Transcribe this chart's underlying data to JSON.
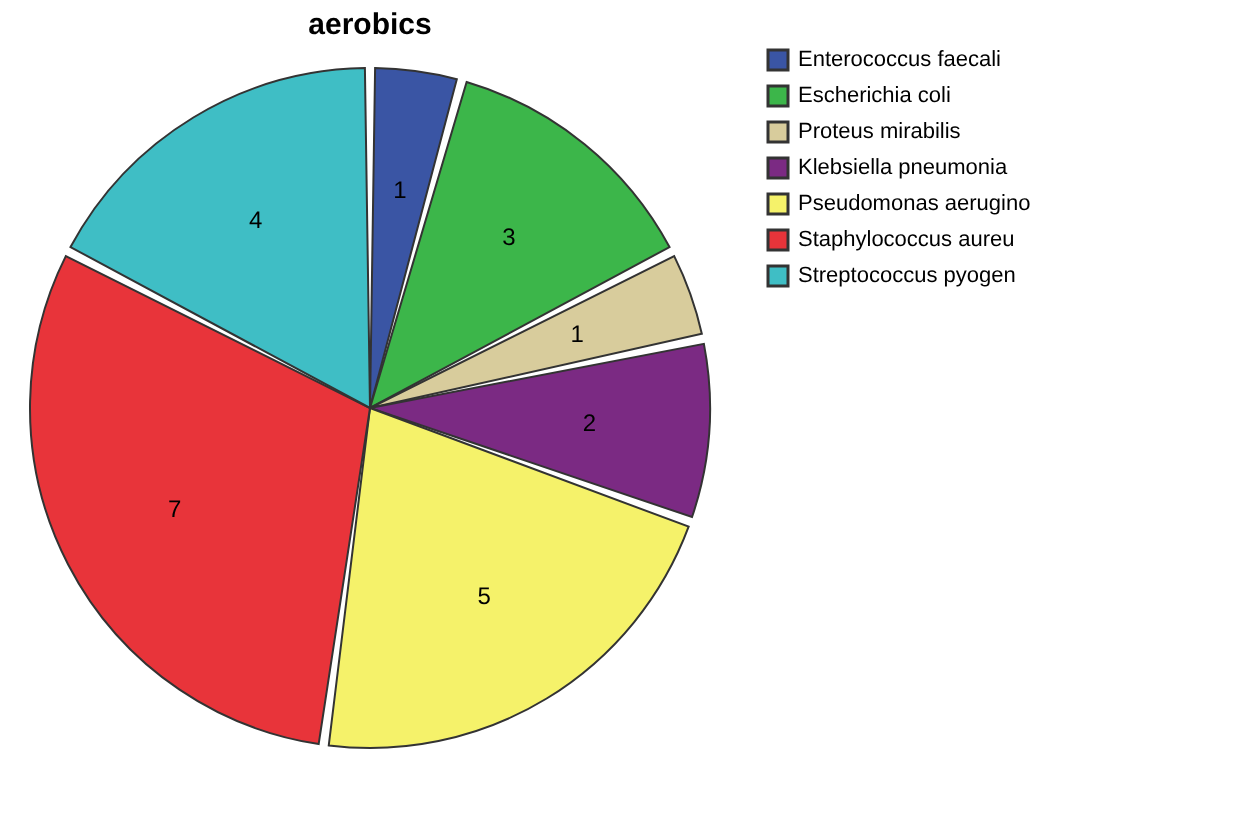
{
  "chart_data": {
    "type": "pie",
    "title": "aerobics",
    "categories": [
      "Enterococcus faecali",
      "Escherichia coli",
      "Proteus mirabilis",
      "Klebsiella pneumonia",
      "Pseudomonas aerugino",
      "Staphylococcus aureu",
      "Streptococcus pyogen"
    ],
    "values": [
      1,
      3,
      1,
      2,
      5,
      7,
      4
    ],
    "colors": [
      "#3a55a4",
      "#3cb64a",
      "#d8cc9c",
      "#7b2a83",
      "#f5f26a",
      "#e8343a",
      "#3fbec5"
    ],
    "legend": "top right",
    "data_labels": true
  }
}
